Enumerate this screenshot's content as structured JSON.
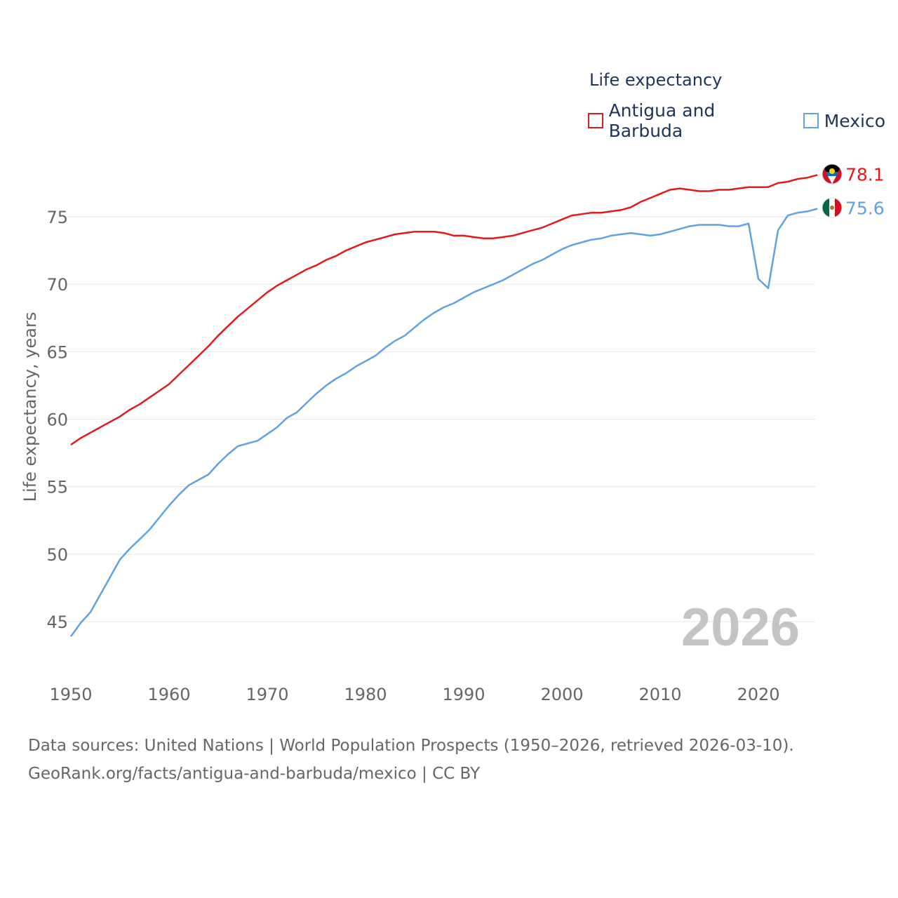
{
  "legend": {
    "title": "Life expectancy",
    "items": [
      {
        "label": "Antigua and Barbuda",
        "color": "#e31a1c"
      },
      {
        "label": "Mexico",
        "color": "#5fa2e4"
      }
    ]
  },
  "footer": {
    "line1": "Data sources: United Nations | World Population Prospects (1950–2026, retrieved 2026-03-10).",
    "line2": "GeoRank.org/facts/antigua-and-barbuda/mexico | CC BY"
  },
  "chart_data": {
    "type": "line",
    "title": "Life expectancy",
    "ylabel": "Life expectancy, years",
    "xlabel": "",
    "year_watermark": "2026",
    "xlim": [
      1950,
      2026
    ],
    "ylim": [
      43,
      80
    ],
    "xticks": [
      1950,
      1960,
      1970,
      1980,
      1990,
      2000,
      2010,
      2020
    ],
    "yticks": [
      45,
      50,
      55,
      60,
      65,
      70,
      75
    ],
    "grid": true,
    "x": [
      1950,
      1951,
      1952,
      1953,
      1954,
      1955,
      1956,
      1957,
      1958,
      1959,
      1960,
      1961,
      1962,
      1963,
      1964,
      1965,
      1966,
      1967,
      1968,
      1969,
      1970,
      1971,
      1972,
      1973,
      1974,
      1975,
      1976,
      1977,
      1978,
      1979,
      1980,
      1981,
      1982,
      1983,
      1984,
      1985,
      1986,
      1987,
      1988,
      1989,
      1990,
      1991,
      1992,
      1993,
      1994,
      1995,
      1996,
      1997,
      1998,
      1999,
      2000,
      2001,
      2002,
      2003,
      2004,
      2005,
      2006,
      2007,
      2008,
      2009,
      2010,
      2011,
      2012,
      2013,
      2014,
      2015,
      2016,
      2017,
      2018,
      2019,
      2020,
      2021,
      2022,
      2023,
      2024,
      2025,
      2026
    ],
    "series": [
      {
        "name": "Antigua and Barbuda",
        "color": "#e31a1c",
        "end_label": "78.1",
        "values": [
          58.1,
          58.6,
          59.0,
          59.4,
          59.8,
          60.2,
          60.7,
          61.1,
          61.6,
          62.1,
          62.6,
          63.3,
          64.0,
          64.7,
          65.4,
          66.2,
          66.9,
          67.6,
          68.2,
          68.8,
          69.4,
          69.9,
          70.3,
          70.7,
          71.1,
          71.4,
          71.8,
          72.1,
          72.5,
          72.8,
          73.1,
          73.3,
          73.5,
          73.7,
          73.8,
          73.9,
          73.9,
          73.9,
          73.8,
          73.6,
          73.6,
          73.5,
          73.4,
          73.4,
          73.5,
          73.6,
          73.8,
          74.0,
          74.2,
          74.5,
          74.8,
          75.1,
          75.2,
          75.3,
          75.3,
          75.4,
          75.5,
          75.7,
          76.1,
          76.4,
          76.7,
          77.0,
          77.1,
          77.0,
          76.9,
          76.9,
          77.0,
          77.0,
          77.1,
          77.2,
          77.2,
          77.2,
          77.5,
          77.6,
          77.8,
          77.9,
          78.1
        ]
      },
      {
        "name": "Mexico",
        "color": "#5fa2e4",
        "end_label": "75.6",
        "values": [
          43.9,
          44.9,
          45.7,
          47.0,
          48.3,
          49.6,
          50.4,
          51.1,
          51.8,
          52.7,
          53.6,
          54.4,
          55.1,
          55.5,
          55.9,
          56.7,
          57.4,
          58.0,
          58.2,
          58.4,
          58.9,
          59.4,
          60.1,
          60.5,
          61.2,
          61.9,
          62.5,
          63.0,
          63.4,
          63.9,
          64.3,
          64.7,
          65.3,
          65.8,
          66.2,
          66.8,
          67.4,
          67.9,
          68.3,
          68.6,
          69.0,
          69.4,
          69.7,
          70.0,
          70.3,
          70.7,
          71.1,
          71.5,
          71.8,
          72.2,
          72.6,
          72.9,
          73.1,
          73.3,
          73.4,
          73.6,
          73.7,
          73.8,
          73.7,
          73.6,
          73.7,
          73.9,
          74.1,
          74.3,
          74.4,
          74.4,
          74.4,
          74.3,
          74.3,
          74.5,
          70.4,
          69.7,
          74.0,
          75.1,
          75.3,
          75.4,
          75.6
        ]
      }
    ]
  }
}
